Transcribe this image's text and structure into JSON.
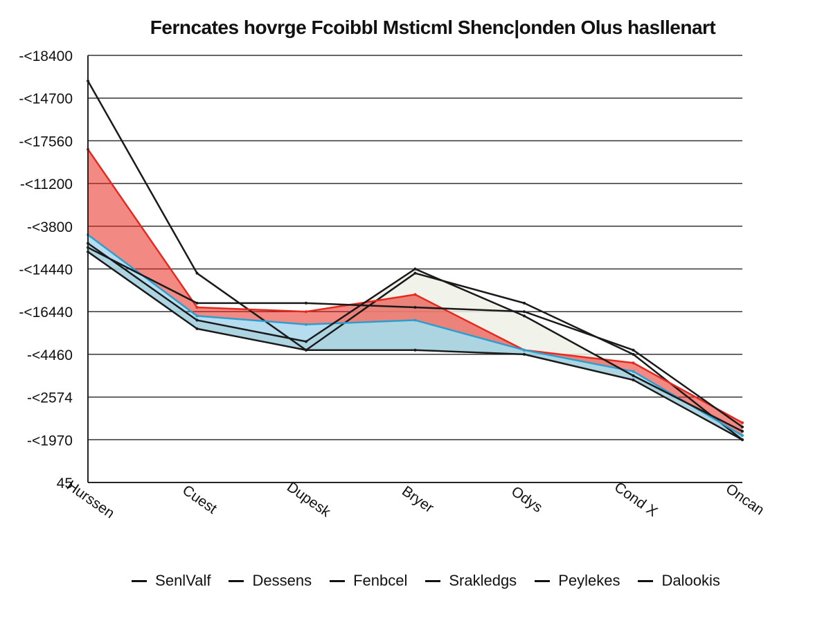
{
  "chart_data": {
    "type": "line",
    "title": "Ferncates hovrge Fcoibbl Msticml Shenc|onden Olus hasllenart",
    "y_tick_labels": [
      "45",
      "-<1970",
      "-<2574",
      "-<4460",
      "-<16440",
      "-<14440",
      "-<3800",
      "-<11200",
      "-<17560",
      "-<14700",
      "-<18400"
    ],
    "categories": [
      "Hurssen",
      "Cuest",
      "Dupesk",
      "Bryer",
      "Odys",
      "Cond X",
      "Oncan"
    ],
    "ylim": [
      0,
      10
    ],
    "grid": true,
    "legend_position": "bottom",
    "series": [
      {
        "name": "SenlValf",
        "color": "#1a1a1a",
        "values": [
          9.4,
          4.9,
          3.1,
          4.9,
          4.2,
          3.0,
          1.0
        ]
      },
      {
        "name": "Dessens",
        "color": "#e8281e",
        "values": [
          7.8,
          4.1,
          4.0,
          4.4,
          3.1,
          2.8,
          1.4
        ]
      },
      {
        "name": "Fenbcel",
        "color": "#2a9fd0",
        "values": [
          5.8,
          3.9,
          3.7,
          3.8,
          3.1,
          2.6,
          1.1
        ]
      },
      {
        "name": "Srakledgs",
        "color": "#1a1a1a",
        "values": [
          5.6,
          3.8,
          3.3,
          5.0,
          3.9,
          2.5,
          1.2
        ]
      },
      {
        "name": "Peylekes",
        "color": "#1a1a1a",
        "values": [
          5.5,
          4.2,
          4.2,
          4.1,
          4.0,
          3.1,
          1.3
        ]
      },
      {
        "name": "Dalookis",
        "color": "#1a1a1a",
        "values": [
          5.4,
          3.6,
          3.1,
          3.1,
          3.0,
          2.4,
          1.0
        ]
      }
    ]
  }
}
